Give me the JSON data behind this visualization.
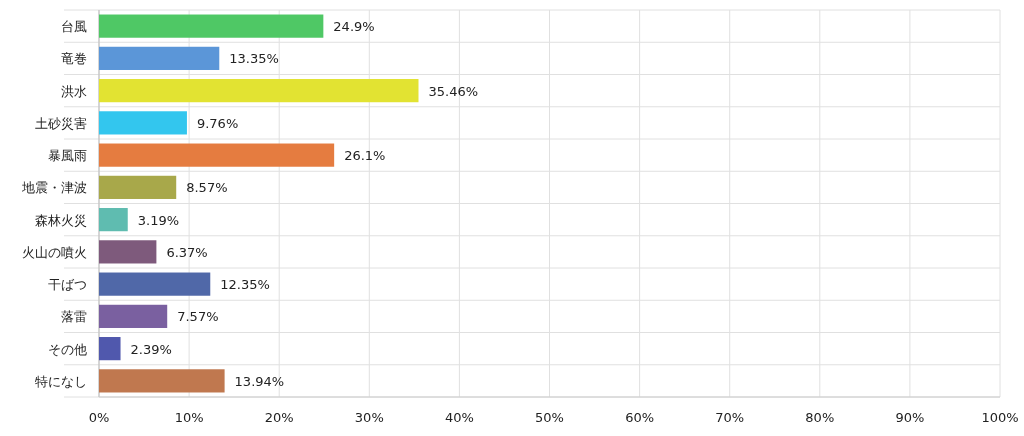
{
  "chart_data": {
    "type": "bar",
    "orientation": "horizontal",
    "categories": [
      "台風",
      "竜巻",
      "洪水",
      "土砂災害",
      "暴風雨",
      "地震・津波",
      "森林火災",
      "火山の噴火",
      "干ばつ",
      "落雷",
      "その他",
      "特になし"
    ],
    "values": [
      24.9,
      13.35,
      35.46,
      9.76,
      26.1,
      8.57,
      3.19,
      6.37,
      12.35,
      7.57,
      2.39,
      13.94
    ],
    "value_labels": [
      "24.9%",
      "13.35%",
      "35.46%",
      "9.76%",
      "26.1%",
      "8.57%",
      "3.19%",
      "6.37%",
      "12.35%",
      "7.57%",
      "2.39%",
      "13.94%"
    ],
    "colors": [
      "#4fc865",
      "#5b96d8",
      "#e2e332",
      "#33c6ee",
      "#e57c40",
      "#a8a84a",
      "#5fbcb0",
      "#7e5a7c",
      "#5068a8",
      "#7a60a0",
      "#5058ad",
      "#c0784f"
    ],
    "xlim": [
      0,
      100
    ],
    "xticks": [
      {
        "value": 0,
        "label": "0%"
      },
      {
        "value": 10,
        "label": "10%"
      },
      {
        "value": 20,
        "label": "20%"
      },
      {
        "value": 30,
        "label": "30%"
      },
      {
        "value": 40,
        "label": "40%"
      },
      {
        "value": 50,
        "label": "50%"
      },
      {
        "value": 60,
        "label": "60%"
      },
      {
        "value": 70,
        "label": "70%"
      },
      {
        "value": 80,
        "label": "80%"
      },
      {
        "value": 90,
        "label": "90%"
      },
      {
        "value": 100,
        "label": "100%"
      }
    ],
    "grid": true
  }
}
